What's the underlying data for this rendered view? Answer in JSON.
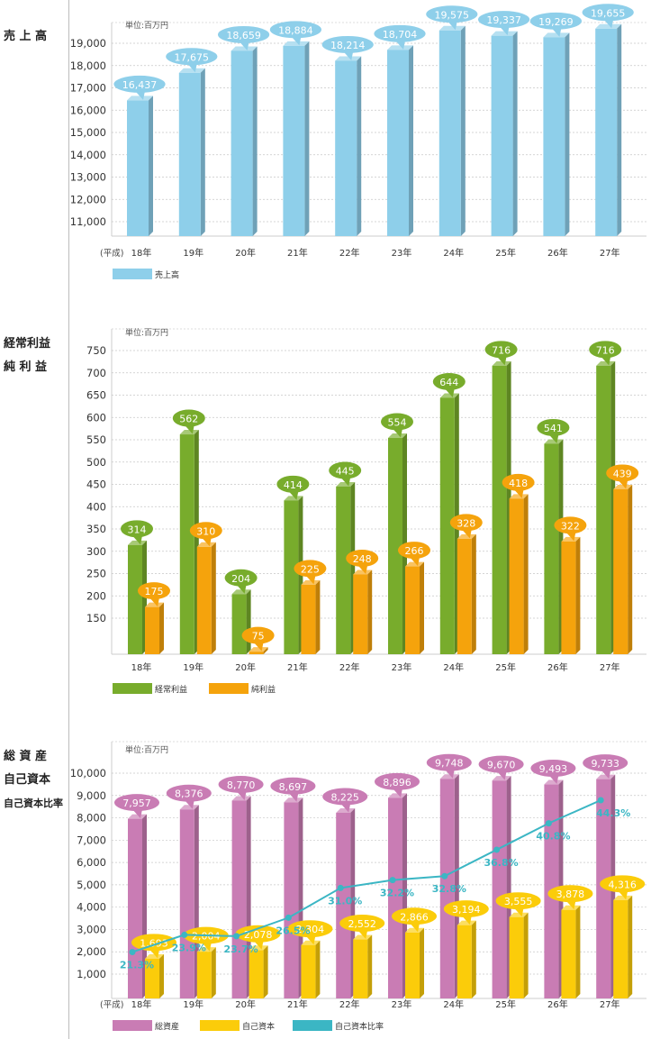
{
  "chart_data": [
    {
      "type": "bar",
      "title_lines": [
        "売 上 高"
      ],
      "unit": "単位:百万円",
      "x_prefix": "(平成)",
      "categories": [
        "18年",
        "19年",
        "20年",
        "21年",
        "22年",
        "23年",
        "24年",
        "25年",
        "26年",
        "27年"
      ],
      "yticks": [
        "11,000",
        "12,000",
        "13,000",
        "14,000",
        "15,000",
        "16,000",
        "17,000",
        "18,000",
        "19,000"
      ],
      "ylim": [
        10000,
        19800
      ],
      "series": [
        {
          "name": "売上高",
          "color": "#8ecfea",
          "values": [
            16437,
            17675,
            18659,
            18884,
            18214,
            18704,
            19575,
            19337,
            19269,
            19655
          ],
          "labels": [
            "16,437",
            "17,675",
            "18,659",
            "18,884",
            "18,214",
            "18,704",
            "19,575",
            "19,337",
            "19,269",
            "19,655"
          ]
        }
      ]
    },
    {
      "type": "bar",
      "title_lines": [
        "経常利益",
        "純 利 益"
      ],
      "unit": "単位:百万円",
      "x_prefix": "",
      "categories": [
        "18年",
        "19年",
        "20年",
        "21年",
        "22年",
        "23年",
        "24年",
        "25年",
        "26年",
        "27年"
      ],
      "yticks": [
        "150",
        "200",
        "250",
        "300",
        "350",
        "400",
        "450",
        "500",
        "550",
        "600",
        "650",
        "700",
        "750"
      ],
      "ylim": [
        60,
        790
      ],
      "series": [
        {
          "name": "経常利益",
          "color": "#78ac2c",
          "values": [
            314,
            562,
            204,
            414,
            445,
            554,
            644,
            716,
            541,
            716
          ],
          "labels": [
            "314",
            "562",
            "204",
            "414",
            "445",
            "554",
            "644",
            "716",
            "541",
            "716"
          ]
        },
        {
          "name": "純利益",
          "color": "#f5a30c",
          "values": [
            175,
            310,
            75,
            225,
            248,
            266,
            328,
            418,
            322,
            439
          ],
          "labels": [
            "175",
            "310",
            "75",
            "225",
            "248",
            "266",
            "328",
            "418",
            "322",
            "439"
          ]
        }
      ]
    },
    {
      "type": "bar",
      "title_lines": [
        "総 資 産",
        "自己資本",
        "自己資本比率"
      ],
      "unit": "単位:百万円",
      "x_prefix": "(平成)",
      "categories": [
        "18年",
        "19年",
        "20年",
        "21年",
        "22年",
        "23年",
        "24年",
        "25年",
        "26年",
        "27年"
      ],
      "yticks": [
        "1,000",
        "2,000",
        "3,000",
        "4,000",
        "5,000",
        "6,000",
        "7,000",
        "8,000",
        "9,000",
        "10,000"
      ],
      "ylim": [
        0,
        10500
      ],
      "series": [
        {
          "name": "総資産",
          "color": "#c97cb4",
          "values": [
            7957,
            8376,
            8770,
            8697,
            8225,
            8896,
            9748,
            9670,
            9493,
            9733
          ],
          "labels": [
            "7,957",
            "8,376",
            "8,770",
            "8,697",
            "8,225",
            "8,896",
            "9,748",
            "9,670",
            "9,493",
            "9,733"
          ]
        },
        {
          "name": "自己資本",
          "color": "#fbcc0a",
          "values": [
            1693,
            2004,
            2078,
            2304,
            2552,
            2866,
            3194,
            3555,
            3878,
            4316
          ],
          "labels": [
            "1,693",
            "2,004",
            "2,078",
            "2,304",
            "2,552",
            "2,866",
            "3,194",
            "3,555",
            "3,878",
            "4,316"
          ]
        }
      ],
      "line_series": {
        "name": "自己資本比率",
        "color": "#3bb6c4",
        "values": [
          21.3,
          23.9,
          23.7,
          26.5,
          31.0,
          32.2,
          32.8,
          36.8,
          40.8,
          44.3
        ],
        "labels": [
          "21.3%",
          "23.9%",
          "23.7%",
          "26.5%",
          "31.0%",
          "32.2%",
          "32.8%",
          "36.8%",
          "40.8%",
          "44.3%"
        ],
        "ylim": [
          0,
          50
        ]
      }
    }
  ]
}
